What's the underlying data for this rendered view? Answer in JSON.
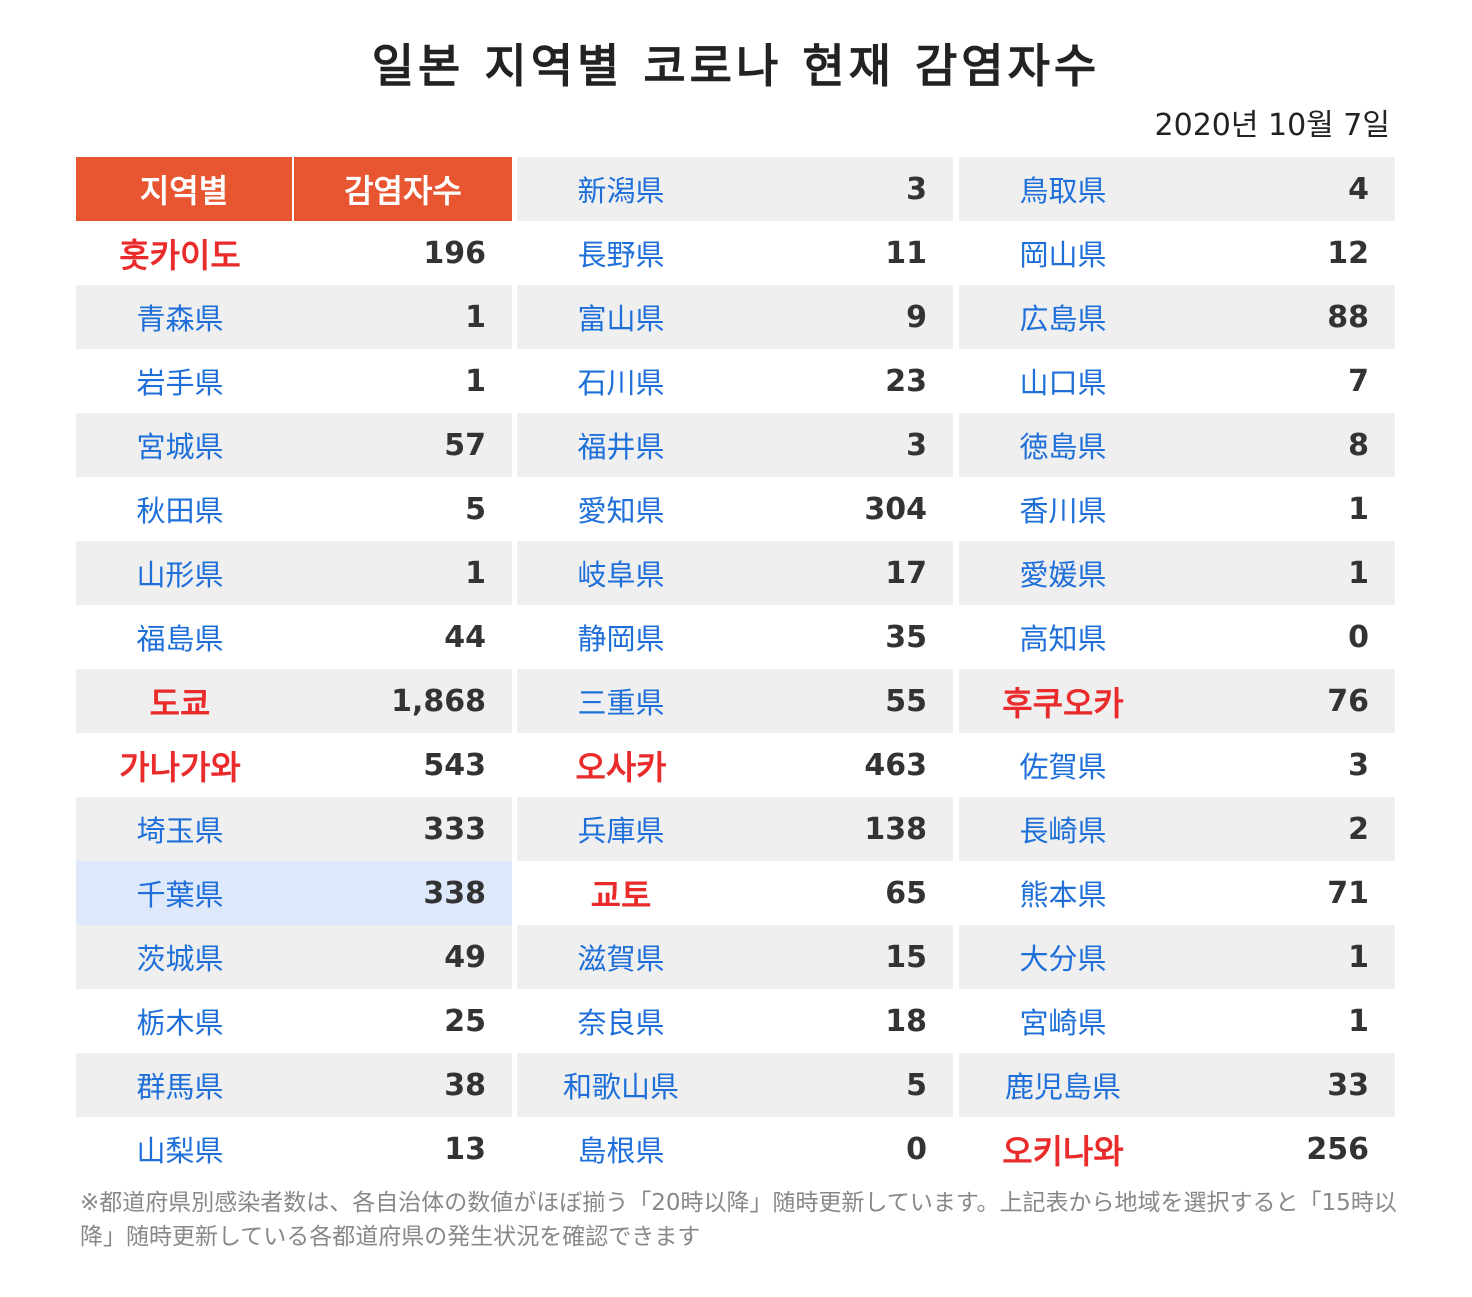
{
  "title": "일본 지역별 코로나 현재 감염자수",
  "date": "2020년 10월 7일",
  "chart_data": {
    "type": "table",
    "columns": [
      "지역별",
      "감염자수"
    ],
    "rows": [
      {
        "region": "홋카이도",
        "count": "196",
        "major": true
      },
      {
        "region": "青森県",
        "count": "1"
      },
      {
        "region": "岩手県",
        "count": "1"
      },
      {
        "region": "宮城県",
        "count": "57"
      },
      {
        "region": "秋田県",
        "count": "5"
      },
      {
        "region": "山形県",
        "count": "1"
      },
      {
        "region": "福島県",
        "count": "44"
      },
      {
        "region": "도쿄",
        "count": "1,868",
        "major": true
      },
      {
        "region": "가나가와",
        "count": "543",
        "major": true
      },
      {
        "region": "埼玉県",
        "count": "333"
      },
      {
        "region": "千葉県",
        "count": "338"
      },
      {
        "region": "茨城県",
        "count": "49"
      },
      {
        "region": "栃木県",
        "count": "25"
      },
      {
        "region": "群馬県",
        "count": "38"
      },
      {
        "region": "山梨県",
        "count": "13"
      },
      {
        "region": "新潟県",
        "count": "3"
      },
      {
        "region": "長野県",
        "count": "11"
      },
      {
        "region": "富山県",
        "count": "9"
      },
      {
        "region": "石川県",
        "count": "23"
      },
      {
        "region": "福井県",
        "count": "3"
      },
      {
        "region": "愛知県",
        "count": "304"
      },
      {
        "region": "岐阜県",
        "count": "17"
      },
      {
        "region": "静岡県",
        "count": "35"
      },
      {
        "region": "三重県",
        "count": "55"
      },
      {
        "region": "오사카",
        "count": "463",
        "major": true
      },
      {
        "region": "兵庫県",
        "count": "138"
      },
      {
        "region": "교토",
        "count": "65",
        "major": true
      },
      {
        "region": "滋賀県",
        "count": "15"
      },
      {
        "region": "奈良県",
        "count": "18"
      },
      {
        "region": "和歌山県",
        "count": "5"
      },
      {
        "region": "島根県",
        "count": "0"
      },
      {
        "region": "鳥取県",
        "count": "4"
      },
      {
        "region": "岡山県",
        "count": "12"
      },
      {
        "region": "広島県",
        "count": "88"
      },
      {
        "region": "山口県",
        "count": "7"
      },
      {
        "region": "徳島県",
        "count": "8"
      },
      {
        "region": "香川県",
        "count": "1"
      },
      {
        "region": "愛媛県",
        "count": "1"
      },
      {
        "region": "高知県",
        "count": "0"
      },
      {
        "region": "후쿠오카",
        "count": "76",
        "major": true
      },
      {
        "region": "佐賀県",
        "count": "3"
      },
      {
        "region": "長崎県",
        "count": "2"
      },
      {
        "region": "熊本県",
        "count": "71"
      },
      {
        "region": "大分県",
        "count": "1"
      },
      {
        "region": "宮崎県",
        "count": "1"
      },
      {
        "region": "鹿児島県",
        "count": "33"
      },
      {
        "region": "오키나와",
        "count": "256",
        "major": true
      }
    ]
  },
  "note": "※都道府県別感染者数は、各自治体の数値がほぼ揃う「20時以降」随時更新しています。上記表から地域を選択すると「15時以降」随時更新している各都道府県の発生状況を確認できます",
  "colors": {
    "header_bg": "#e85531",
    "region_text": "#1e6fd9",
    "major_region_text": "#ea2b2b",
    "row_shade": "#efefef",
    "row_highlight": "#dde8fb"
  }
}
